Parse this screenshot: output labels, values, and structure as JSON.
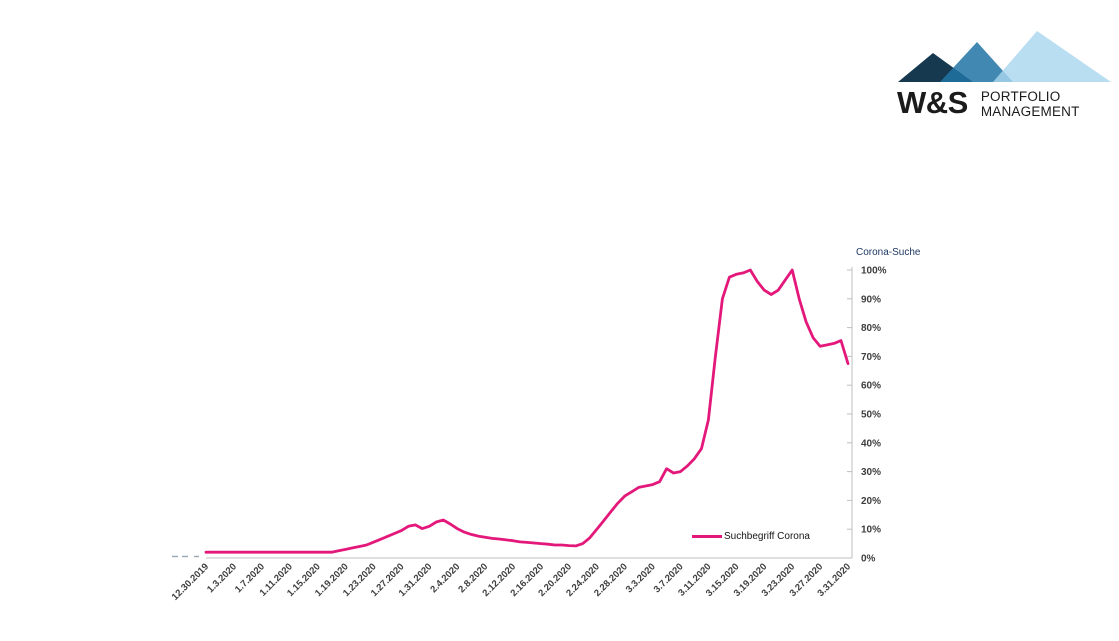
{
  "logo": {
    "wordmark": "W&S",
    "line1": "PORTFOLIO",
    "line2": "MANAGEMENT",
    "colors": {
      "dark": "#16394F",
      "mid": "#2074A5",
      "light": "#A9D5EE"
    }
  },
  "chart": {
    "axis_title": "Corona-Suche",
    "legend_label": "Suchbegriff Corona",
    "line_color": "#E3187A",
    "axis_color": "#BFBFBF",
    "label_color": "#404040",
    "axis_title_color": "#1F3864"
  },
  "chart_data": {
    "type": "line",
    "title": "Corona-Suche",
    "ylabel": "Corona-Suche",
    "xlabel": "",
    "ylim": [
      0,
      100
    ],
    "y_ticks": [
      "0%",
      "10%",
      "20%",
      "30%",
      "40%",
      "50%",
      "60%",
      "70%",
      "80%",
      "90%",
      "100%"
    ],
    "y_axis_side": "right",
    "grid": false,
    "legend_position": "inside-bottom-right",
    "x_tick_every": 4,
    "x_tick_labels": [
      "12.30.2019",
      "1.3.2020",
      "1.7.2020",
      "1.11.2020",
      "1.15.2020",
      "1.19.2020",
      "1.23.2020",
      "1.27.2020",
      "1.31.2020",
      "2.4.2020",
      "2.8.2020",
      "2.12.2020",
      "2.16.2020",
      "2.20.2020",
      "2.24.2020",
      "2.28.2020",
      "3.3.2020",
      "3.7.2020",
      "3.11.2020",
      "3.15.2020",
      "3.19.2020",
      "3.23.2020",
      "3.27.2020",
      "3.31.2020"
    ],
    "x": [
      "12.30.2019",
      "12.31.2019",
      "1.1.2020",
      "1.2.2020",
      "1.3.2020",
      "1.4.2020",
      "1.5.2020",
      "1.6.2020",
      "1.7.2020",
      "1.8.2020",
      "1.9.2020",
      "1.10.2020",
      "1.11.2020",
      "1.12.2020",
      "1.13.2020",
      "1.14.2020",
      "1.15.2020",
      "1.16.2020",
      "1.17.2020",
      "1.18.2020",
      "1.19.2020",
      "1.20.2020",
      "1.21.2020",
      "1.22.2020",
      "1.23.2020",
      "1.24.2020",
      "1.25.2020",
      "1.26.2020",
      "1.27.2020",
      "1.28.2020",
      "1.29.2020",
      "1.30.2020",
      "1.31.2020",
      "2.1.2020",
      "2.2.2020",
      "2.3.2020",
      "2.4.2020",
      "2.5.2020",
      "2.6.2020",
      "2.7.2020",
      "2.8.2020",
      "2.9.2020",
      "2.10.2020",
      "2.11.2020",
      "2.12.2020",
      "2.13.2020",
      "2.14.2020",
      "2.15.2020",
      "2.16.2020",
      "2.17.2020",
      "2.18.2020",
      "2.19.2020",
      "2.20.2020",
      "2.21.2020",
      "2.22.2020",
      "2.23.2020",
      "2.24.2020",
      "2.25.2020",
      "2.26.2020",
      "2.27.2020",
      "2.28.2020",
      "2.29.2020",
      "3.1.2020",
      "3.2.2020",
      "3.3.2020",
      "3.4.2020",
      "3.5.2020",
      "3.6.2020",
      "3.7.2020",
      "3.8.2020",
      "3.9.2020",
      "3.10.2020",
      "3.11.2020",
      "3.12.2020",
      "3.13.2020",
      "3.14.2020",
      "3.15.2020",
      "3.16.2020",
      "3.17.2020",
      "3.18.2020",
      "3.19.2020",
      "3.20.2020",
      "3.21.2020",
      "3.22.2020",
      "3.23.2020",
      "3.24.2020",
      "3.25.2020",
      "3.26.2020",
      "3.27.2020",
      "3.28.2020",
      "3.29.2020",
      "3.30.2020",
      "3.31.2020"
    ],
    "series": [
      {
        "name": "Suchbegriff Corona",
        "color": "#E3187A",
        "values": [
          2,
          2,
          2,
          2,
          2,
          2,
          2,
          2,
          2,
          2,
          2,
          2,
          2,
          2,
          2,
          2,
          2,
          2,
          2,
          2.5,
          3,
          3.5,
          4,
          4.5,
          5.5,
          6.5,
          7.5,
          8.5,
          9.5,
          11,
          11.5,
          10.2,
          11,
          12.5,
          13.2,
          11.8,
          10.2,
          9,
          8.2,
          7.6,
          7.2,
          6.8,
          6.6,
          6.3,
          6,
          5.6,
          5.4,
          5.2,
          5,
          4.8,
          4.5,
          4.5,
          4.3,
          4.2,
          5,
          7,
          10,
          13,
          16,
          19,
          21.5,
          23,
          24.5,
          25,
          25.5,
          26.5,
          31,
          29.5,
          30,
          32,
          34.5,
          38,
          48,
          70,
          90,
          97.5,
          98.5,
          99,
          100,
          96,
          93,
          91.5,
          93,
          96.5,
          100,
          90,
          82,
          76.5,
          73.5,
          74,
          74.5,
          75.5,
          67.5
        ]
      }
    ]
  }
}
